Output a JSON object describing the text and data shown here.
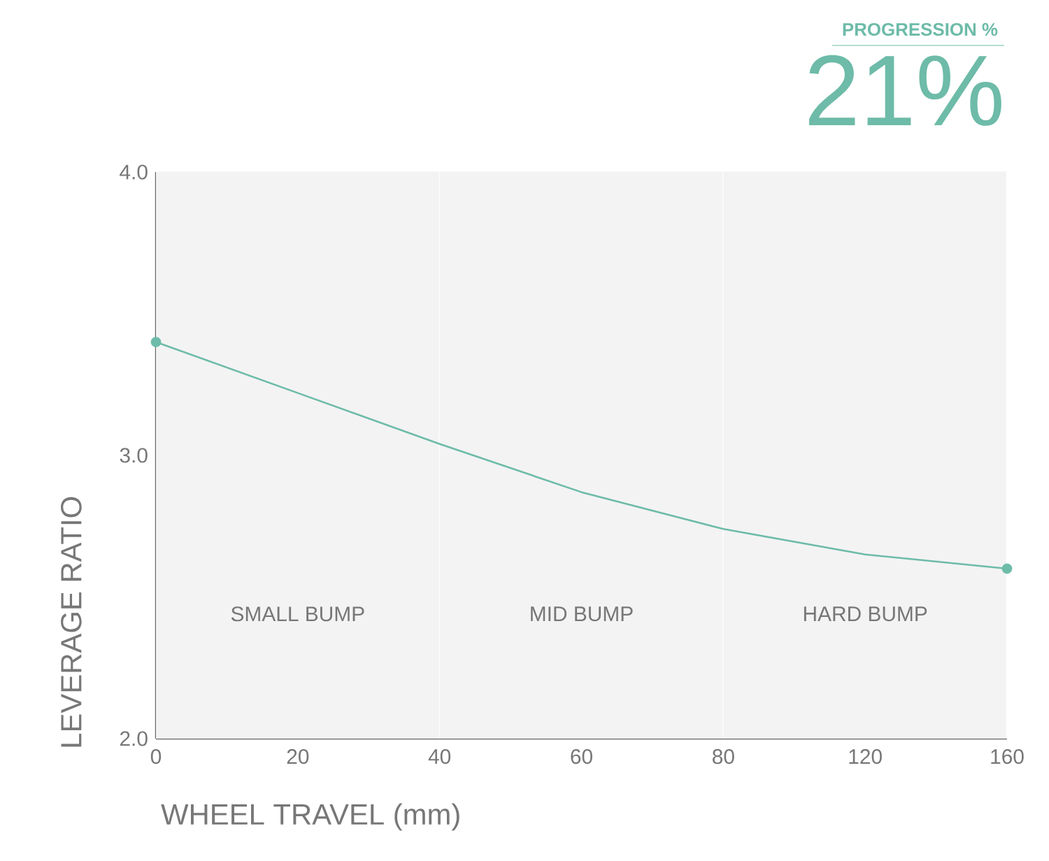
{
  "chart_data": {
    "type": "line",
    "title": "21%",
    "subtitle": "PROGRESSION   %",
    "xlabel": "WHEEL TRAVEL (mm)",
    "ylabel": "LEVERAGE RATIO",
    "categories": [
      "0",
      "20",
      "40",
      "60",
      "80",
      "120",
      "160"
    ],
    "series": [
      {
        "color": "#6dbba8",
        "values": [
          3.4,
          3.22,
          3.04,
          2.87,
          2.74,
          2.65,
          2.6
        ]
      },
      {
        "type": "scatter",
        "marker": "circle",
        "color": "#6dbba8",
        "values": [
          3.4,
          null,
          null,
          null,
          null,
          null,
          2.6
        ]
      }
    ],
    "ylim": [
      2,
      4
    ],
    "yticks": [
      {
        "value": 2,
        "label": "2.0"
      },
      {
        "value": 2.5,
        "label": null
      },
      {
        "value": 3,
        "label": "3.0"
      },
      {
        "value": 3.5,
        "label": null
      },
      {
        "value": 4,
        "label": "4.0"
      }
    ],
    "grid": true,
    "bands": [
      {
        "axis": "x",
        "from": "0",
        "to": "40",
        "color": "#f3f3f3",
        "label": "SMALL BUMP"
      },
      {
        "axis": "x",
        "from": "40",
        "to": "80",
        "color": "#f3f3f3",
        "label": "MID BUMP"
      },
      {
        "axis": "x",
        "from": "80",
        "to": "160",
        "color": "#f3f3f3",
        "label": "HARD BUMP"
      }
    ]
  }
}
